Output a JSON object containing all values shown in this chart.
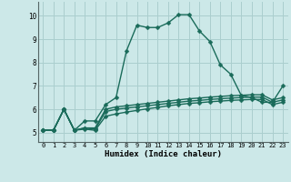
{
  "xlabel": "Humidex (Indice chaleur)",
  "background_color": "#cce8e8",
  "grid_color": "#aacece",
  "line_color": "#1a6b5a",
  "x_ticks": [
    0,
    1,
    2,
    3,
    4,
    5,
    6,
    7,
    8,
    9,
    10,
    11,
    12,
    13,
    14,
    15,
    16,
    17,
    18,
    19,
    20,
    21,
    22,
    23
  ],
  "y_ticks": [
    5,
    6,
    7,
    8,
    9,
    10
  ],
  "xlim": [
    -0.5,
    23.5
  ],
  "ylim": [
    4.6,
    10.6
  ],
  "series": [
    {
      "x": [
        0,
        1,
        2,
        3,
        4,
        5,
        6,
        7,
        8,
        9,
        10,
        11,
        12,
        13,
        14,
        15,
        16,
        17,
        18,
        19,
        20,
        21,
        22,
        23
      ],
      "y": [
        5.1,
        5.1,
        6.0,
        5.1,
        5.5,
        5.5,
        6.2,
        6.5,
        8.5,
        9.6,
        9.5,
        9.5,
        9.7,
        10.05,
        10.05,
        9.35,
        8.9,
        7.9,
        7.5,
        6.6,
        6.5,
        6.3,
        6.3,
        7.0
      ],
      "style": "-",
      "marker": "D",
      "markersize": 2.5,
      "linewidth": 1.0
    },
    {
      "x": [
        0,
        1,
        2,
        3,
        4,
        5,
        6,
        7,
        8,
        9,
        10,
        11,
        12,
        13,
        14,
        15,
        16,
        17,
        18,
        19,
        20,
        21,
        22,
        23
      ],
      "y": [
        5.1,
        5.1,
        6.0,
        5.1,
        5.2,
        5.2,
        6.0,
        6.1,
        6.15,
        6.2,
        6.25,
        6.3,
        6.35,
        6.4,
        6.45,
        6.48,
        6.52,
        6.55,
        6.58,
        6.6,
        6.62,
        6.62,
        6.4,
        6.5
      ],
      "style": "-",
      "marker": "D",
      "markersize": 2.5,
      "linewidth": 1.0
    },
    {
      "x": [
        0,
        1,
        2,
        3,
        4,
        5,
        6,
        7,
        8,
        9,
        10,
        11,
        12,
        13,
        14,
        15,
        16,
        17,
        18,
        19,
        20,
        21,
        22,
        23
      ],
      "y": [
        5.1,
        5.1,
        6.0,
        5.1,
        5.2,
        5.15,
        5.9,
        6.0,
        6.05,
        6.1,
        6.15,
        6.2,
        6.25,
        6.3,
        6.35,
        6.38,
        6.42,
        6.45,
        6.48,
        6.5,
        6.52,
        6.52,
        6.3,
        6.4
      ],
      "style": "-",
      "marker": "D",
      "markersize": 2.5,
      "linewidth": 1.0
    },
    {
      "x": [
        0,
        1,
        2,
        3,
        4,
        5,
        6,
        7,
        8,
        9,
        10,
        11,
        12,
        13,
        14,
        15,
        16,
        17,
        18,
        19,
        20,
        21,
        22,
        23
      ],
      "y": [
        5.1,
        5.1,
        6.0,
        5.1,
        5.15,
        5.1,
        5.7,
        5.8,
        5.88,
        5.95,
        6.02,
        6.08,
        6.15,
        6.2,
        6.25,
        6.28,
        6.32,
        6.35,
        6.38,
        6.4,
        6.42,
        6.42,
        6.2,
        6.3
      ],
      "style": "-",
      "marker": "D",
      "markersize": 2.5,
      "linewidth": 1.0
    }
  ]
}
